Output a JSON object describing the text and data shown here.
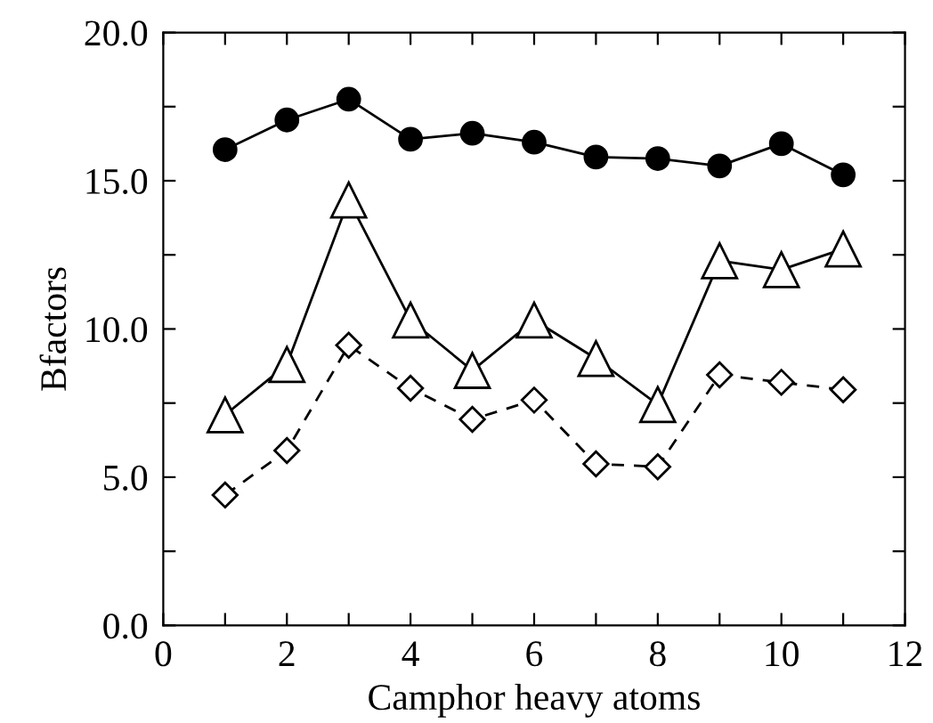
{
  "chart_data": {
    "type": "line",
    "xlabel": "Camphor heavy atoms",
    "ylabel": "Bfactors",
    "x": [
      1,
      2,
      3,
      4,
      5,
      6,
      7,
      8,
      9,
      10,
      11
    ],
    "series": [
      {
        "color": "#000000",
        "marker": "circle",
        "line_style": "solid",
        "values": [
          16.05,
          17.05,
          17.75,
          16.4,
          16.6,
          16.3,
          15.8,
          15.75,
          15.5,
          16.25,
          15.2
        ]
      },
      {
        "color": "#000000",
        "marker": "triangle",
        "line_style": "solid",
        "values": [
          7.1,
          8.8,
          14.35,
          10.3,
          8.6,
          10.3,
          9.0,
          7.45,
          12.3,
          12.0,
          12.7
        ]
      },
      {
        "color": "#000000",
        "marker": "diamond",
        "line_style": "dashed",
        "values": [
          4.4,
          5.9,
          9.45,
          8.0,
          6.95,
          7.6,
          5.45,
          5.35,
          8.45,
          8.2,
          7.95
        ]
      }
    ],
    "xlim": [
      0,
      12
    ],
    "ylim": [
      0,
      20
    ],
    "xticks": [
      0,
      {
        "value": 1,
        "label": null
      },
      2,
      {
        "value": 3,
        "label": null
      },
      4,
      {
        "value": 5,
        "label": null
      },
      6,
      {
        "value": 7,
        "label": null
      },
      8,
      {
        "value": 9,
        "label": null
      },
      10,
      {
        "value": 11,
        "label": null
      },
      12
    ],
    "yticks": [
      {
        "value": 0,
        "label": "0.0"
      },
      {
        "value": 2.5,
        "label": null
      },
      {
        "value": 5,
        "label": "5.0"
      },
      {
        "value": 7.5,
        "label": null
      },
      {
        "value": 10,
        "label": "10.0"
      },
      {
        "value": 12.5,
        "label": null
      },
      {
        "value": 15,
        "label": "15.0"
      },
      {
        "value": 17.5,
        "label": null
      },
      {
        "value": 20,
        "label": "20.0"
      }
    ],
    "grid": false,
    "legend": false
  }
}
